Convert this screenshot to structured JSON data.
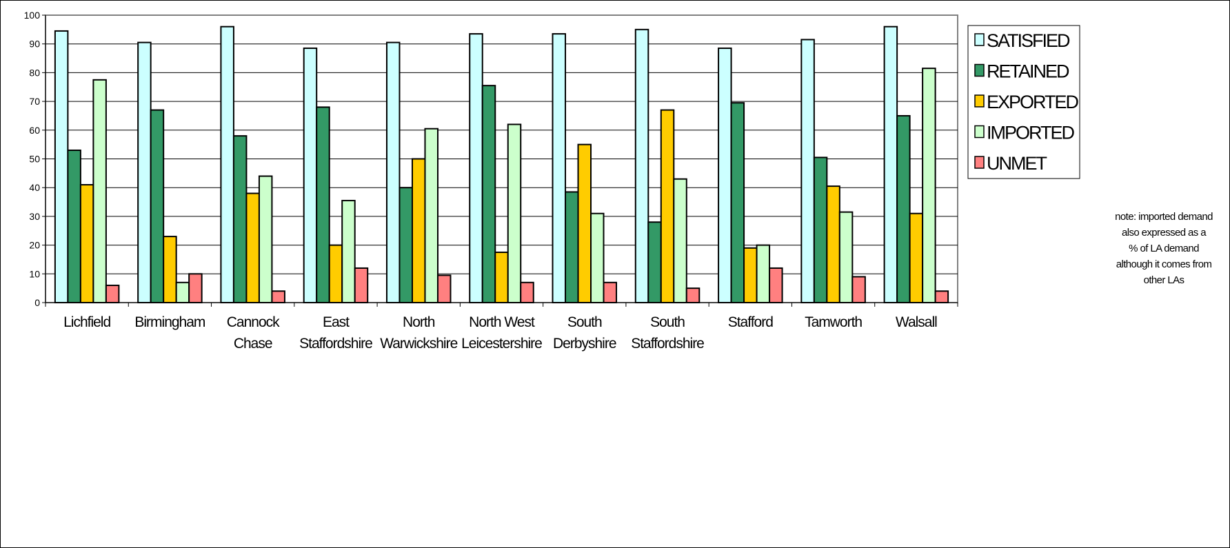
{
  "chart_data": {
    "type": "bar",
    "title": "",
    "xlabel": "",
    "ylabel": "",
    "ylim": [
      0,
      100
    ],
    "yticks": [
      0,
      10,
      20,
      30,
      40,
      50,
      60,
      70,
      80,
      90,
      100
    ],
    "grid": true,
    "legend_position": "right",
    "categories": [
      [
        "Lichfield"
      ],
      [
        "Birmingham"
      ],
      [
        "Cannock",
        "Chase"
      ],
      [
        "East",
        "Staffordshire"
      ],
      [
        "North",
        "Warwickshire"
      ],
      [
        "North West",
        "Leicestershire"
      ],
      [
        "South",
        "Derbyshire"
      ],
      [
        "South",
        "Staffordshire"
      ],
      [
        "Stafford"
      ],
      [
        "Tamworth"
      ],
      [
        "Walsall"
      ]
    ],
    "series": [
      {
        "name": "SATISFIED",
        "color": "#ccffff",
        "values": [
          94.5,
          90.5,
          96,
          88.5,
          90.5,
          93.5,
          93.5,
          95,
          88.5,
          91.5,
          96
        ]
      },
      {
        "name": "RETAINED",
        "color": "#339966",
        "values": [
          53,
          67,
          58,
          68,
          40,
          75.5,
          38.5,
          28,
          69.5,
          50.5,
          65
        ]
      },
      {
        "name": "EXPORTED",
        "color": "#ffcc00",
        "values": [
          41,
          23,
          38,
          20,
          50,
          17.5,
          55,
          67,
          19,
          40.5,
          31
        ]
      },
      {
        "name": "IMPORTED",
        "color": "#ccffcc",
        "values": [
          77.5,
          7,
          44,
          35.5,
          60.5,
          62,
          31,
          43,
          20,
          31.5,
          81.5
        ]
      },
      {
        "name": "UNMET",
        "color": "#ff8080",
        "values": [
          6,
          10,
          4,
          12,
          9.5,
          7,
          7,
          5,
          12,
          9,
          4
        ]
      }
    ],
    "annotation": [
      "note: imported demand",
      "also expressed as a",
      "% of LA demand",
      "although it comes from",
      "other LAs"
    ]
  }
}
